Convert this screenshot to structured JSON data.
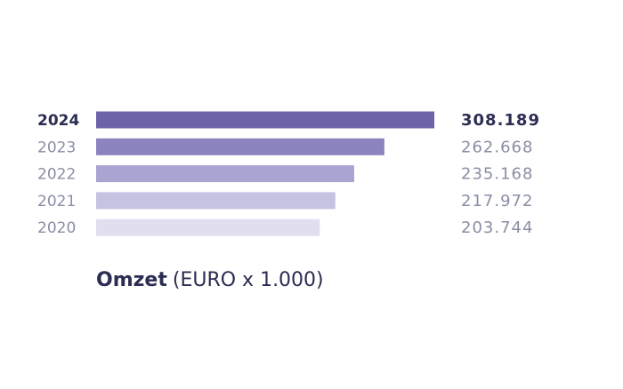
{
  "chart_data": {
    "type": "bar",
    "orientation": "horizontal",
    "title": "Omzet",
    "subtitle": "(EURO x 1.000)",
    "categories": [
      "2024",
      "2023",
      "2022",
      "2021",
      "2020"
    ],
    "values": [
      308189,
      262668,
      235168,
      217972,
      203744
    ],
    "value_labels": [
      "308.189",
      "262.668",
      "235.168",
      "217.972",
      "203.744"
    ],
    "colors": [
      "#6c63a8",
      "#8b84bf",
      "#a9a4d1",
      "#c6c3e2",
      "#e1dfef"
    ]
  }
}
